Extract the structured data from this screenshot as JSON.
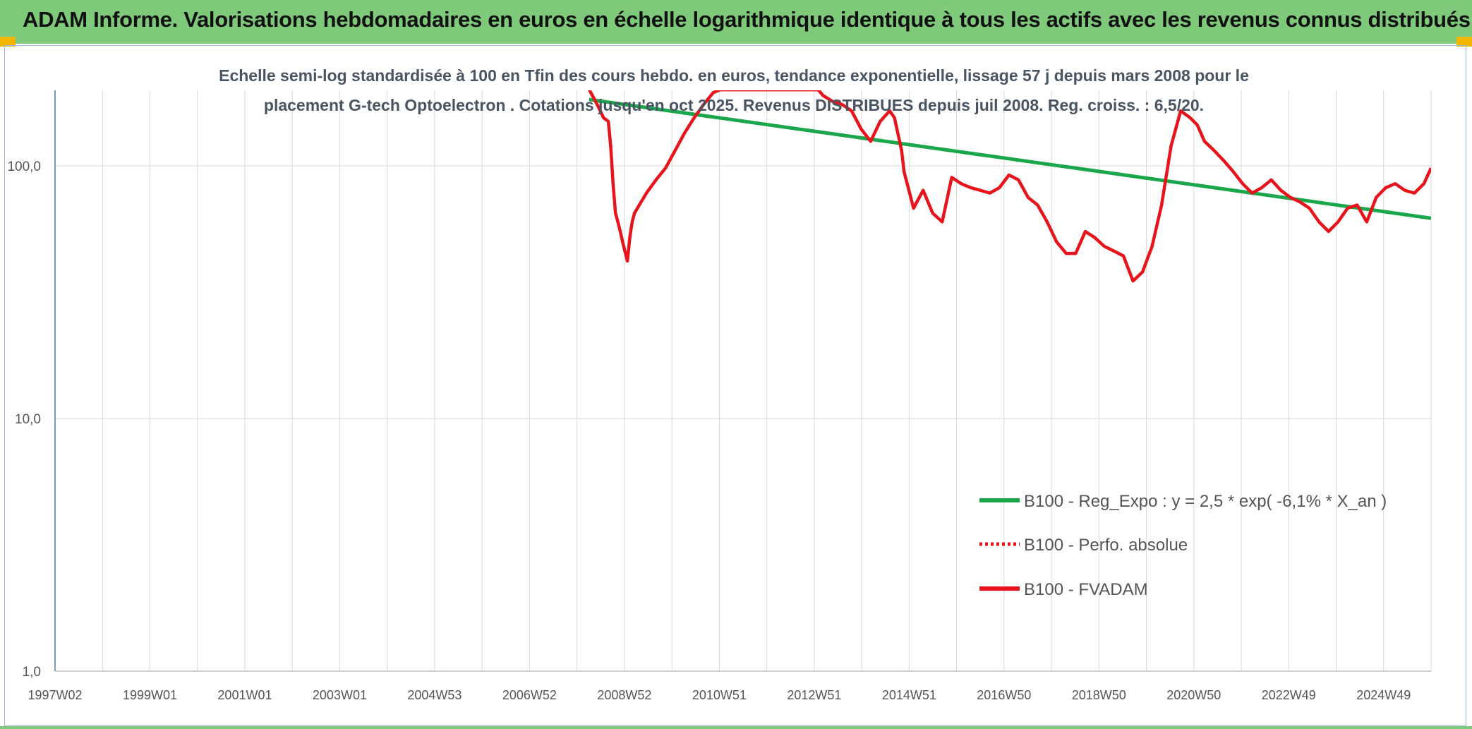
{
  "header": {
    "title": "ADAM Informe. Valorisations hebdomadaires en euros en échelle logarithmique identique à tous les actifs avec les revenus connus distribués"
  },
  "colors": {
    "banner": "#7fc97a",
    "regression": "#1aa64a",
    "fvadam": "#e8141c",
    "perfo": "#e8141c",
    "grid": "#d9d9d9",
    "axis": "#4a7ab8"
  },
  "chart_data": {
    "type": "line",
    "title_lines": [
      "Echelle semi-log standardisée à 100 en Tfin des cours hebdo. en euros, tendance exponentielle, lissage 57 j depuis mars 2008 pour le",
      "placement G-tech Optoelectron . Cotations jusqu'en oct 2025. Revenus DISTRIBUES depuis juil 2008. Reg. croiss. : 6,5/20."
    ],
    "y_scale": "log",
    "ylim": [
      1,
      200
    ],
    "y_ticks": [
      "1,0",
      "10,0",
      "100,0"
    ],
    "x_tick_labels": [
      "1997W02",
      "1999W01",
      "2001W01",
      "2003W01",
      "2004W53",
      "2006W52",
      "2008W52",
      "2010W51",
      "2012W51",
      "2014W51",
      "2016W50",
      "2018W50",
      "2020W50",
      "2022W49",
      "2024W49"
    ],
    "xlim": [
      1997.0,
      2025.85
    ],
    "grid": true,
    "legend_position": "bottom-right",
    "legend": [
      "B100 - Reg_Expo : y = 2,5 * exp( -6,1% *  X_an )",
      "B100 - Perfo. absolue",
      "B100 - FVADAM"
    ],
    "series": [
      {
        "name": "B100 - Reg_Expo : y = 2,5 * exp( -6,1% *  X_an )",
        "style": "solid",
        "x": [
          2008.2,
          2025.85
        ],
        "y": [
          183,
          62
        ]
      },
      {
        "name": "B100 - Perfo. absolue",
        "style": "dotted",
        "x": [],
        "y": []
      },
      {
        "name": "B100 - FVADAM",
        "style": "solid",
        "x": [
          2008.2,
          2008.3,
          2008.4,
          2008.5,
          2008.6,
          2008.65,
          2008.7,
          2008.75,
          2008.8,
          2008.85,
          2008.9,
          2009.0,
          2009.05,
          2009.1,
          2009.15,
          2009.25,
          2009.4,
          2009.6,
          2009.8,
          2010.0,
          2010.2,
          2010.4,
          2010.6,
          2010.8,
          2010.95,
          2011.4,
          2011.8,
          2012.2,
          2012.6,
          2013.0,
          2013.1,
          2013.3,
          2013.5,
          2013.7,
          2013.9,
          2014.1,
          2014.3,
          2014.5,
          2014.6,
          2014.75,
          2014.8,
          2015.0,
          2015.2,
          2015.4,
          2015.6,
          2015.8,
          2016.0,
          2016.2,
          2016.4,
          2016.6,
          2016.8,
          2017.0,
          2017.2,
          2017.4,
          2017.6,
          2017.8,
          2018.0,
          2018.2,
          2018.4,
          2018.6,
          2018.8,
          2019.0,
          2019.2,
          2019.4,
          2019.6,
          2019.8,
          2020.0,
          2020.2,
          2020.4,
          2020.6,
          2020.8,
          2020.95,
          2021.1,
          2021.3,
          2021.5,
          2021.7,
          2021.9,
          2022.1,
          2022.3,
          2022.5,
          2022.7,
          2022.9,
          2023.1,
          2023.3,
          2023.5,
          2023.7,
          2023.9,
          2024.1,
          2024.3,
          2024.5,
          2024.7,
          2024.9,
          2025.1,
          2025.3,
          2025.5,
          2025.7,
          2025.85
        ],
        "y": [
          200,
          185,
          170,
          155,
          150,
          120,
          85,
          65,
          60,
          55,
          50,
          42,
          52,
          60,
          65,
          70,
          78,
          88,
          98,
          115,
          135,
          155,
          175,
          195,
          200,
          200,
          200,
          200,
          200,
          200,
          190,
          180,
          175,
          165,
          140,
          125,
          150,
          165,
          155,
          115,
          95,
          68,
          80,
          65,
          60,
          90,
          85,
          82,
          80,
          78,
          82,
          92,
          88,
          75,
          70,
          60,
          50,
          45,
          45,
          55,
          52,
          48,
          46,
          44,
          35,
          38,
          48,
          70,
          120,
          165,
          155,
          145,
          125,
          115,
          105,
          95,
          85,
          78,
          82,
          88,
          80,
          75,
          72,
          68,
          60,
          55,
          60,
          68,
          70,
          60,
          75,
          82,
          85,
          80,
          78,
          85,
          98
        ]
      }
    ]
  }
}
